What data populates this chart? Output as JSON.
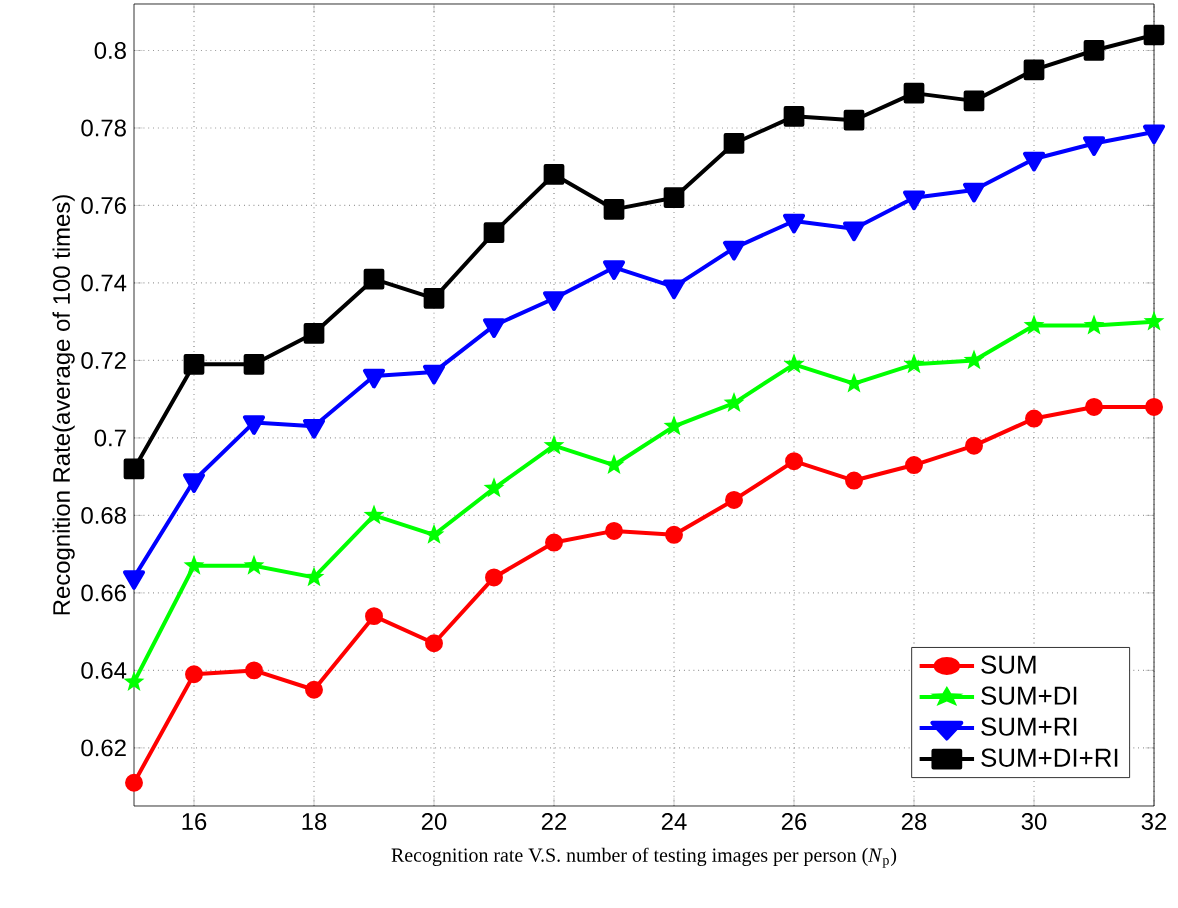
{
  "chart_data": {
    "type": "line",
    "xlabel": "Recognition rate V.S. number of testing images per person (*N*$_{p}$)",
    "ylabel": "Recognition Rate(average of 100 times)",
    "x": [
      15,
      16,
      17,
      18,
      19,
      20,
      21,
      22,
      23,
      24,
      25,
      26,
      27,
      28,
      29,
      30,
      31,
      32
    ],
    "series": [
      {
        "name": "SUM",
        "color": "#ff0000",
        "marker": "circle",
        "values": [
          0.611,
          0.639,
          0.64,
          0.635,
          0.654,
          0.647,
          0.664,
          0.673,
          0.676,
          0.675,
          0.684,
          0.694,
          0.689,
          0.693,
          0.698,
          0.705,
          0.708,
          0.708
        ]
      },
      {
        "name": "SUM+DI",
        "color": "#00ff00",
        "marker": "star",
        "values": [
          0.637,
          0.667,
          0.667,
          0.664,
          0.68,
          0.675,
          0.687,
          0.698,
          0.693,
          0.703,
          0.709,
          0.719,
          0.714,
          0.719,
          0.72,
          0.729,
          0.729,
          0.73
        ]
      },
      {
        "name": "SUM+RI",
        "color": "#0000ff",
        "marker": "triangle",
        "values": [
          0.664,
          0.689,
          0.704,
          0.703,
          0.716,
          0.717,
          0.729,
          0.736,
          0.744,
          0.739,
          0.749,
          0.756,
          0.754,
          0.762,
          0.764,
          0.772,
          0.776,
          0.779
        ]
      },
      {
        "name": "SUM+DI+RI",
        "color": "#000000",
        "marker": "square",
        "values": [
          0.692,
          0.719,
          0.719,
          0.727,
          0.741,
          0.736,
          0.753,
          0.768,
          0.759,
          0.762,
          0.776,
          0.783,
          0.782,
          0.789,
          0.787,
          0.795,
          0.8,
          0.804
        ]
      }
    ],
    "xlim": [
      15,
      32
    ],
    "ylim": [
      0.605,
      0.812
    ],
    "xticks": [
      16,
      18,
      20,
      22,
      24,
      26,
      28,
      30,
      32
    ],
    "yticks": [
      0.62,
      0.64,
      0.66,
      0.68,
      0.7,
      0.72,
      0.74,
      0.76,
      0.78,
      0.8
    ],
    "grid": true,
    "legend": "bottom right",
    "line_style": "solid"
  }
}
